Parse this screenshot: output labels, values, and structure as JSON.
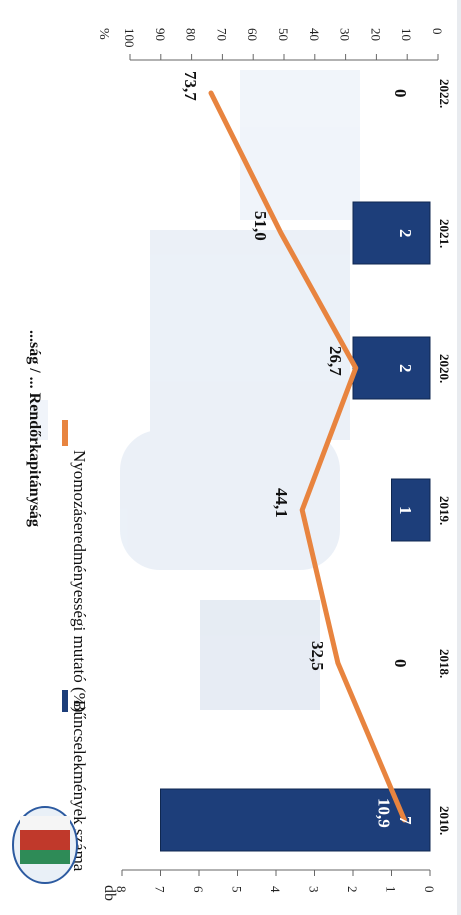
{
  "header": {
    "title_visible": "...ság / ... Rendőrkapitányság"
  },
  "chart_data": {
    "type": "bar+line",
    "categories": [
      "2010.",
      "2018.",
      "2019.",
      "2020.",
      "2021.",
      "2022."
    ],
    "bar_series": {
      "name": "Bűncselekmények száma",
      "values": [
        7,
        0,
        1,
        2,
        2,
        0
      ],
      "axis_label": "db",
      "ylim": [
        0,
        8
      ],
      "ticks": [
        "0",
        "1",
        "2",
        "3",
        "4",
        "5",
        "6",
        "7",
        "8"
      ],
      "color": "#1d3e7a"
    },
    "line_series": {
      "name": "Nyomozáseredményességi mutató (%)",
      "values": [
        10.9,
        32.5,
        44.1,
        26.7,
        51.0,
        73.7
      ],
      "value_labels": [
        "10,9",
        "32,5",
        "44,1",
        "26,7",
        "51,0",
        "73,7"
      ],
      "axis_label": "%",
      "ylim": [
        0,
        100
      ],
      "ticks": [
        "0",
        "10",
        "20",
        "30",
        "40",
        "50",
        "60",
        "70",
        "80",
        "90",
        "100"
      ],
      "color": "#e8843f"
    },
    "legend_placement": "top"
  }
}
